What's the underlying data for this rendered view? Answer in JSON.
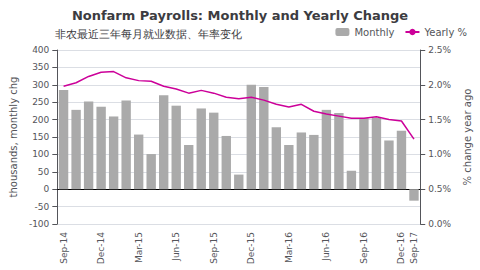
{
  "chart_data": {
    "type": "bar",
    "title": "Nonfarm Payrolls: Monthly and Yearly Change",
    "subtitle": "非农最近三年每月就业数据、年率变化",
    "ylabel": "thousands, monthly chg",
    "y2label": "% change year ago",
    "categories": [
      "Sep-14",
      null,
      null,
      "Dec-14",
      null,
      null,
      "Mar-15",
      null,
      null,
      "Jun-15",
      null,
      null,
      "Sep-15",
      null,
      null,
      "Dec-15",
      null,
      null,
      "Mar-16",
      null,
      null,
      "Jun-16",
      null,
      null,
      "Sep-16",
      null,
      null,
      "Dec-16",
      "Sep-17"
    ],
    "series": [
      {
        "name": "Monthly",
        "type": "bar",
        "color": "#aaaaaa",
        "values": [
          285,
          228,
          252,
          237,
          209,
          255,
          157,
          101,
          270,
          240,
          127,
          232,
          220,
          153,
          42,
          300,
          294,
          178,
          127,
          163,
          156,
          228,
          219,
          53,
          204,
          205,
          140,
          168,
          -33
        ]
      },
      {
        "name": "Yearly %",
        "type": "line",
        "color": "#cc0099",
        "axis": "y2",
        "values": [
          1.98,
          2.03,
          2.12,
          2.18,
          2.19,
          2.1,
          2.06,
          2.05,
          1.98,
          1.94,
          1.88,
          1.92,
          1.88,
          1.82,
          1.8,
          1.82,
          1.78,
          1.72,
          1.68,
          1.72,
          1.62,
          1.58,
          1.55,
          1.52,
          1.52,
          1.54,
          1.5,
          1.48,
          1.22
        ]
      }
    ],
    "ylim": [
      -100,
      400
    ],
    "yticks": [
      -100,
      -50,
      0,
      50,
      100,
      150,
      200,
      250,
      300,
      350,
      400
    ],
    "y2lim": [
      0.0,
      2.5
    ],
    "y2ticks": [
      {
        "value": 0.0,
        "label": "0.0%"
      },
      {
        "value": 0.5,
        "label": "0.5%"
      },
      {
        "value": 1.0,
        "label": "1.0%"
      },
      {
        "value": 1.5,
        "label": "1.5%"
      },
      {
        "value": 2.0,
        "label": "2.0%"
      },
      {
        "value": 2.5,
        "label": "2.5%"
      }
    ],
    "grid": true,
    "legend": "upper right"
  }
}
